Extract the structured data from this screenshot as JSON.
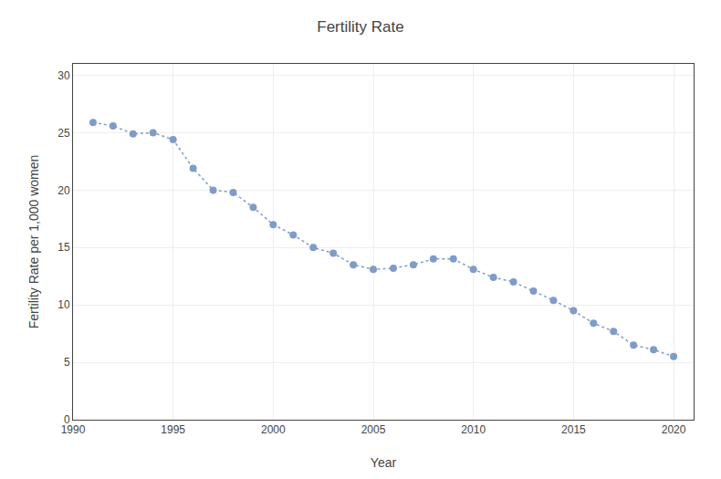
{
  "chart_data": {
    "type": "line",
    "title": "Fertility Rate",
    "xlabel": "Year",
    "ylabel": "Fertility Rate per 1,000 women",
    "x": [
      1991,
      1992,
      1993,
      1994,
      1995,
      1996,
      1997,
      1998,
      1999,
      2000,
      2001,
      2002,
      2003,
      2004,
      2005,
      2006,
      2007,
      2008,
      2009,
      2010,
      2011,
      2012,
      2013,
      2014,
      2015,
      2016,
      2017,
      2018,
      2019,
      2020
    ],
    "values": [
      25.9,
      25.6,
      24.9,
      25.0,
      24.4,
      21.9,
      20.0,
      19.8,
      18.5,
      17.0,
      16.1,
      15.0,
      14.5,
      13.5,
      13.1,
      13.2,
      13.5,
      14.0,
      14.0,
      13.1,
      12.4,
      12.0,
      11.2,
      10.4,
      9.5,
      8.4,
      7.7,
      6.5,
      6.1,
      5.5
    ],
    "color": "#7f9cc8",
    "marker": "circle",
    "line_style": "dotted",
    "xlim": [
      1990,
      2021
    ],
    "ylim": [
      0,
      31
    ],
    "xticks": [
      1990,
      1995,
      2000,
      2005,
      2010,
      2015,
      2020
    ],
    "yticks": [
      0,
      5,
      10,
      15,
      20,
      25,
      30
    ],
    "grid": true
  }
}
